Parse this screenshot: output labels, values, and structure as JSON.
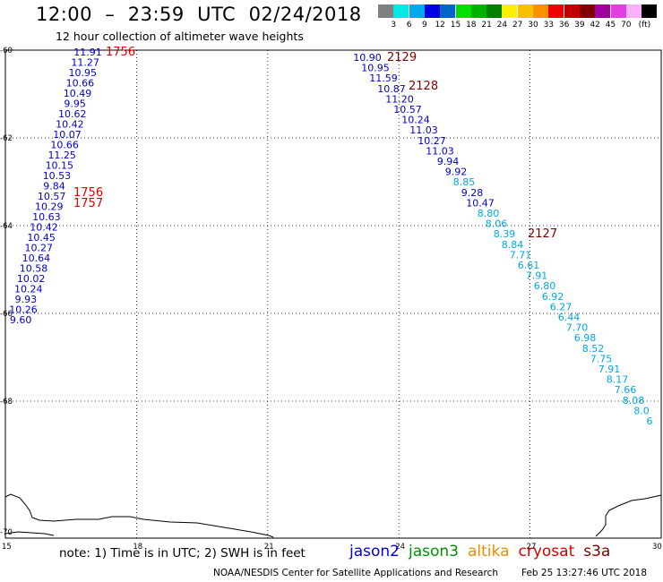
{
  "header": {
    "title": "12:00  –  23:59  UTC  02/24/2018",
    "subtitle": "12 hour collection of altimeter wave heights"
  },
  "legend": {
    "unit": "(ft)",
    "swatches": [
      {
        "color": "#808080",
        "label": ""
      },
      {
        "color": "#00e8e8",
        "label": "3"
      },
      {
        "color": "#00a8f0",
        "label": "6"
      },
      {
        "color": "#0000e0",
        "label": "9"
      },
      {
        "color": "#0064c8",
        "label": "12"
      },
      {
        "color": "#00e000",
        "label": "15"
      },
      {
        "color": "#00b000",
        "label": "18"
      },
      {
        "color": "#008000",
        "label": "21"
      },
      {
        "color": "#f8f000",
        "label": "24"
      },
      {
        "color": "#f8c000",
        "label": "27"
      },
      {
        "color": "#f89000",
        "label": "30"
      },
      {
        "color": "#f00000",
        "label": "33"
      },
      {
        "color": "#c00000",
        "label": "36"
      },
      {
        "color": "#800000",
        "label": "39"
      },
      {
        "color": "#a000a0",
        "label": "42"
      },
      {
        "color": "#e040e0",
        "label": "45"
      },
      {
        "color": "#f8b0f8",
        "label": "70"
      },
      {
        "color": "#000000",
        "label": ""
      }
    ]
  },
  "axes": {
    "x_ticks": [
      "15",
      "18",
      "21",
      "24",
      "27",
      "30"
    ],
    "y_ticks": [
      "-60",
      "-62",
      "-64",
      "-66",
      "-68",
      "-70"
    ]
  },
  "tracks": {
    "colors": {
      "blue": "#0000cc",
      "cyan": "#00a8e0",
      "red": "#e00000",
      "darkred": "#800000"
    },
    "west_values": [
      "11.91",
      "11.27",
      "10.95",
      "10.66",
      "10.49",
      "9.95",
      "10.62",
      "10.42",
      "10.07",
      "10.66",
      "11.25",
      "10.15",
      "10.53",
      "9.84",
      "10.57",
      "10.29",
      "10.63",
      "10.42",
      "10.45",
      "10.27",
      "10.64",
      "10.58",
      "10.02",
      "10.24",
      "9.93",
      "10.26",
      "9.60"
    ],
    "east_values": [
      {
        "v": "10.90",
        "c": "blue"
      },
      {
        "v": "10.95",
        "c": "blue"
      },
      {
        "v": "11.59",
        "c": "blue"
      },
      {
        "v": "10.87",
        "c": "blue"
      },
      {
        "v": "11.20",
        "c": "blue"
      },
      {
        "v": "10.57",
        "c": "blue"
      },
      {
        "v": "10.24",
        "c": "blue"
      },
      {
        "v": "11.03",
        "c": "blue"
      },
      {
        "v": "10.27",
        "c": "blue"
      },
      {
        "v": "11.03",
        "c": "blue"
      },
      {
        "v": "9.94",
        "c": "blue"
      },
      {
        "v": "9.92",
        "c": "blue"
      },
      {
        "v": "8.85",
        "c": "cyan"
      },
      {
        "v": "9.28",
        "c": "blue"
      },
      {
        "v": "10.47",
        "c": "blue"
      },
      {
        "v": "8.80",
        "c": "cyan"
      },
      {
        "v": "8.06",
        "c": "cyan"
      },
      {
        "v": "8.39",
        "c": "cyan"
      },
      {
        "v": "8.84",
        "c": "cyan"
      },
      {
        "v": "7.71",
        "c": "cyan"
      },
      {
        "v": "6.61",
        "c": "cyan"
      },
      {
        "v": "7.91",
        "c": "cyan"
      },
      {
        "v": "6.80",
        "c": "cyan"
      },
      {
        "v": "6.92",
        "c": "cyan"
      },
      {
        "v": "6.27",
        "c": "cyan"
      },
      {
        "v": "6.44",
        "c": "cyan"
      },
      {
        "v": "7.70",
        "c": "cyan"
      },
      {
        "v": "6.98",
        "c": "cyan"
      },
      {
        "v": "8.52",
        "c": "cyan"
      },
      {
        "v": "7.75",
        "c": "cyan"
      },
      {
        "v": "7.91",
        "c": "cyan"
      },
      {
        "v": "8.17",
        "c": "cyan"
      },
      {
        "v": "7.66",
        "c": "cyan"
      },
      {
        "v": "8.08",
        "c": "cyan"
      },
      {
        "v": "8.0",
        "c": "cyan"
      },
      {
        "v": "6",
        "c": "cyan"
      }
    ],
    "time_labels": [
      {
        "t": "1756",
        "c": "red"
      },
      {
        "t": "1756",
        "c": "red"
      },
      {
        "t": "1757",
        "c": "red"
      },
      {
        "t": "2129",
        "c": "darkred"
      },
      {
        "t": "2128",
        "c": "darkred"
      },
      {
        "t": "2127",
        "c": "darkred"
      }
    ]
  },
  "footer": {
    "note": "note:  1) Time is in UTC;  2) SWH is in feet",
    "satellites": [
      {
        "name": "jason2",
        "color": "#0000dd"
      },
      {
        "name": "jason3",
        "color": "#009000"
      },
      {
        "name": "altika",
        "color": "#f08c00"
      },
      {
        "name": "cryosat",
        "color": "#d00000"
      },
      {
        "name": "s3a",
        "color": "#800000"
      }
    ],
    "credit": "NOAA/NESDIS Center for Satellite Applications and Research",
    "timestamp": "Feb 25 13:27:46 UTC 2018"
  }
}
